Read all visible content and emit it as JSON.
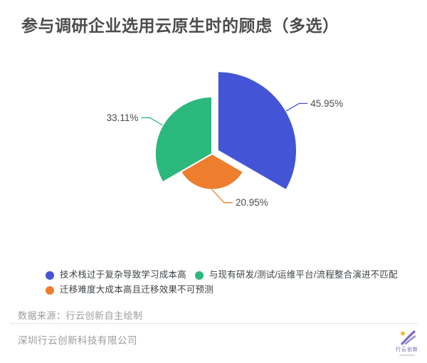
{
  "page": {
    "title": "参与调研企业选用云原生时的顾虑（多选）",
    "background": "#ffffff"
  },
  "chart_data": {
    "type": "pie",
    "variant": "nightingale-rose-equal-angle",
    "start_angle_deg": 0,
    "clockwise": true,
    "unit": "%",
    "series": [
      {
        "name": "技术栈过于复杂导致学习成本高",
        "value": 45.95,
        "label": "45.95%",
        "color": "#4355d6",
        "selected": true
      },
      {
        "name": "迁移难度大成本高且迁移效果不可预测",
        "value": 20.95,
        "label": "20.95%",
        "color": "#ee7e2e",
        "selected": false
      },
      {
        "name": "与现有研发/测试/运维平台/流程整合演进不匹配",
        "value": 33.11,
        "label": "33.11%",
        "color": "#2bb87c",
        "selected": false
      }
    ],
    "label_color": "#4c4c4c",
    "slice_border_color": "#ffffff",
    "legend_position": "bottom-left"
  },
  "source_note": "数据来源：行云创新自主绘制",
  "footer": {
    "company": "深圳行云创新科技有限公司",
    "logo_text": "行云创新"
  },
  "colors": {
    "title": "#4c4c4c",
    "legend_text": "#3e4347",
    "note_text": "#9b9b9b",
    "divider": "#e3e3e3",
    "logo_purple": "#7d6cc0",
    "logo_yellow": "#f6bf3e"
  }
}
